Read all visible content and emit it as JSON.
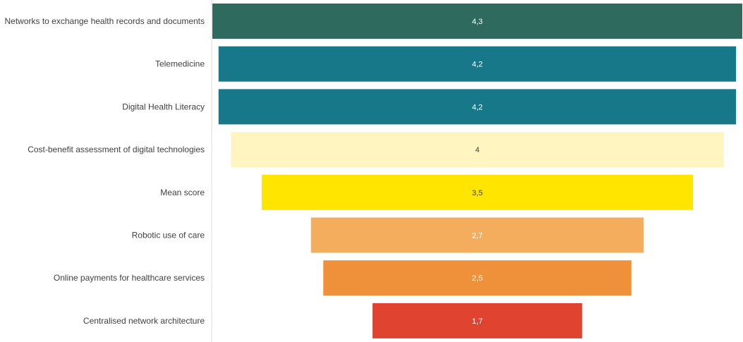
{
  "chart_data": {
    "type": "bar",
    "orientation": "horizontal-funnel",
    "categories": [
      "Networks to exchange health records and documents",
      "Telemedicine",
      "Digital Health Literacy",
      "Cost-benefit assessment of digital technologies",
      "Mean score",
      "Robotic use of care",
      "Online payments for healthcare services",
      "Centralised network architecture"
    ],
    "values": [
      4.3,
      4.2,
      4.2,
      4,
      3.5,
      2.7,
      2.5,
      1.7
    ],
    "value_labels": [
      "4,3",
      "4,2",
      "4,2",
      "4",
      "3,5",
      "2,7",
      "2,5",
      "1,7"
    ],
    "colors": [
      "#2e6b5e",
      "#17788a",
      "#17788a",
      "#fff5c0",
      "#ffe500",
      "#f4ad5c",
      "#ee913a",
      "#e0432f"
    ],
    "value_label_colors": [
      "#ffffff",
      "#ffffff",
      "#ffffff",
      "#404040",
      "#404040",
      "#ffffff",
      "#ffffff",
      "#ffffff"
    ],
    "axis_separator_color": "#d9d9d9",
    "title": "",
    "xlabel": "",
    "ylabel": "",
    "xlim": [
      0,
      4.3
    ],
    "grid": false,
    "legend": "none"
  }
}
